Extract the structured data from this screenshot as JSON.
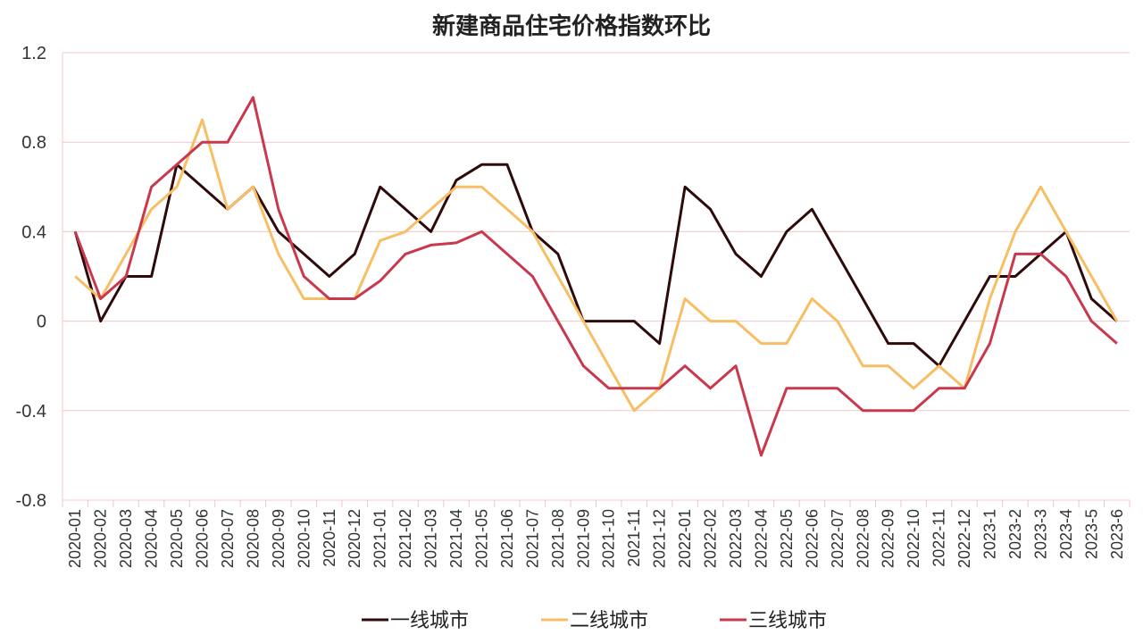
{
  "chart_data": {
    "type": "line",
    "title": "新建商品住宅价格指数环比",
    "xlabel": "",
    "ylabel": "",
    "ylim": [
      -0.8,
      1.2
    ],
    "yticks": [
      "1.2",
      "0.8",
      "0.4",
      "0",
      "-0.4",
      "-0.8"
    ],
    "ytick_values": [
      1.2,
      0.8,
      0.4,
      0,
      -0.4,
      -0.8
    ],
    "grid": true,
    "legend_position": "bottom",
    "categories": [
      "2020-01",
      "2020-02",
      "2020-03",
      "2020-04",
      "2020-05",
      "2020-06",
      "2020-07",
      "2020-08",
      "2020-09",
      "2020-10",
      "2020-11",
      "2020-12",
      "2021-01",
      "2021-02",
      "2021-03",
      "2021-04",
      "2021-05",
      "2021-06",
      "2021-07",
      "2021-08",
      "2021-09",
      "2021-10",
      "2021-11",
      "2021-12",
      "2022-01",
      "2022-02",
      "2022-03",
      "2022-04",
      "2022-05",
      "2022-06",
      "2022-07",
      "2022-08",
      "2022-09",
      "2022-10",
      "2022-11",
      "2022-12",
      "2023-1",
      "2023-2",
      "2023-3",
      "2023-4",
      "2023-5",
      "2023-6"
    ],
    "series": [
      {
        "name": "一线城市",
        "color": "#2e0a0a",
        "values": [
          0.4,
          0,
          0.2,
          0.2,
          0.7,
          0.6,
          0.5,
          0.6,
          0.4,
          0.3,
          0.2,
          0.3,
          0.6,
          0.5,
          0.4,
          0.63,
          0.7,
          0.7,
          0.4,
          0.3,
          0,
          0,
          0,
          -0.1,
          0.6,
          0.5,
          0.3,
          0.2,
          0.4,
          0.5,
          0.3,
          0.1,
          -0.1,
          -0.1,
          -0.2,
          0,
          0.2,
          0.2,
          0.3,
          0.4,
          0.1,
          0
        ]
      },
      {
        "name": "二线城市",
        "color": "#f8be64",
        "values": [
          0.2,
          0.1,
          0.3,
          0.5,
          0.6,
          0.9,
          0.5,
          0.6,
          0.3,
          0.1,
          0.1,
          0.1,
          0.36,
          0.4,
          0.5,
          0.6,
          0.6,
          0.5,
          0.4,
          0.2,
          0,
          -0.2,
          -0.4,
          -0.3,
          0.1,
          0,
          0,
          -0.1,
          -0.1,
          0.1,
          0,
          -0.2,
          -0.2,
          -0.3,
          -0.2,
          -0.3,
          0.1,
          0.4,
          0.6,
          0.4,
          0.2,
          0
        ]
      },
      {
        "name": "三线城市",
        "color": "#c8394e",
        "values": [
          0.4,
          0.1,
          0.2,
          0.6,
          0.7,
          0.8,
          0.8,
          1.0,
          0.5,
          0.2,
          0.1,
          0.1,
          0.18,
          0.3,
          0.34,
          0.35,
          0.4,
          0.3,
          0.2,
          0,
          -0.2,
          -0.3,
          -0.3,
          -0.3,
          -0.2,
          -0.3,
          -0.2,
          -0.6,
          -0.3,
          -0.3,
          -0.3,
          -0.4,
          -0.4,
          -0.4,
          -0.3,
          -0.3,
          -0.1,
          0.3,
          0.3,
          0.2,
          0,
          -0.1
        ]
      }
    ]
  }
}
